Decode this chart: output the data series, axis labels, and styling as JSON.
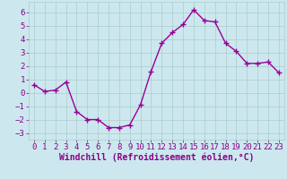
{
  "x": [
    0,
    1,
    2,
    3,
    4,
    5,
    6,
    7,
    8,
    9,
    10,
    11,
    12,
    13,
    14,
    15,
    16,
    17,
    18,
    19,
    20,
    21,
    22,
    23
  ],
  "y": [
    0.6,
    0.1,
    0.2,
    0.8,
    -1.4,
    -2.0,
    -2.0,
    -2.6,
    -2.6,
    -2.4,
    -0.9,
    1.6,
    3.7,
    4.5,
    5.1,
    6.2,
    5.4,
    5.3,
    3.7,
    3.1,
    2.2,
    2.2,
    2.3,
    1.5
  ],
  "line_color": "#990099",
  "marker": "+",
  "bg_color": "#cce8ee",
  "grid_color": "#aacccc",
  "xlabel": "Windchill (Refroidissement éolien,°C)",
  "xlim": [
    -0.5,
    23.5
  ],
  "ylim": [
    -3.5,
    6.8
  ],
  "yticks": [
    -3,
    -2,
    -1,
    0,
    1,
    2,
    3,
    4,
    5,
    6
  ],
  "xticks": [
    0,
    1,
    2,
    3,
    4,
    5,
    6,
    7,
    8,
    9,
    10,
    11,
    12,
    13,
    14,
    15,
    16,
    17,
    18,
    19,
    20,
    21,
    22,
    23
  ],
  "tick_color": "#880088",
  "label_color": "#880088",
  "font_size": 6.5,
  "label_fontsize": 7,
  "linewidth": 1.0,
  "markersize": 4,
  "markeredgewidth": 1.0
}
